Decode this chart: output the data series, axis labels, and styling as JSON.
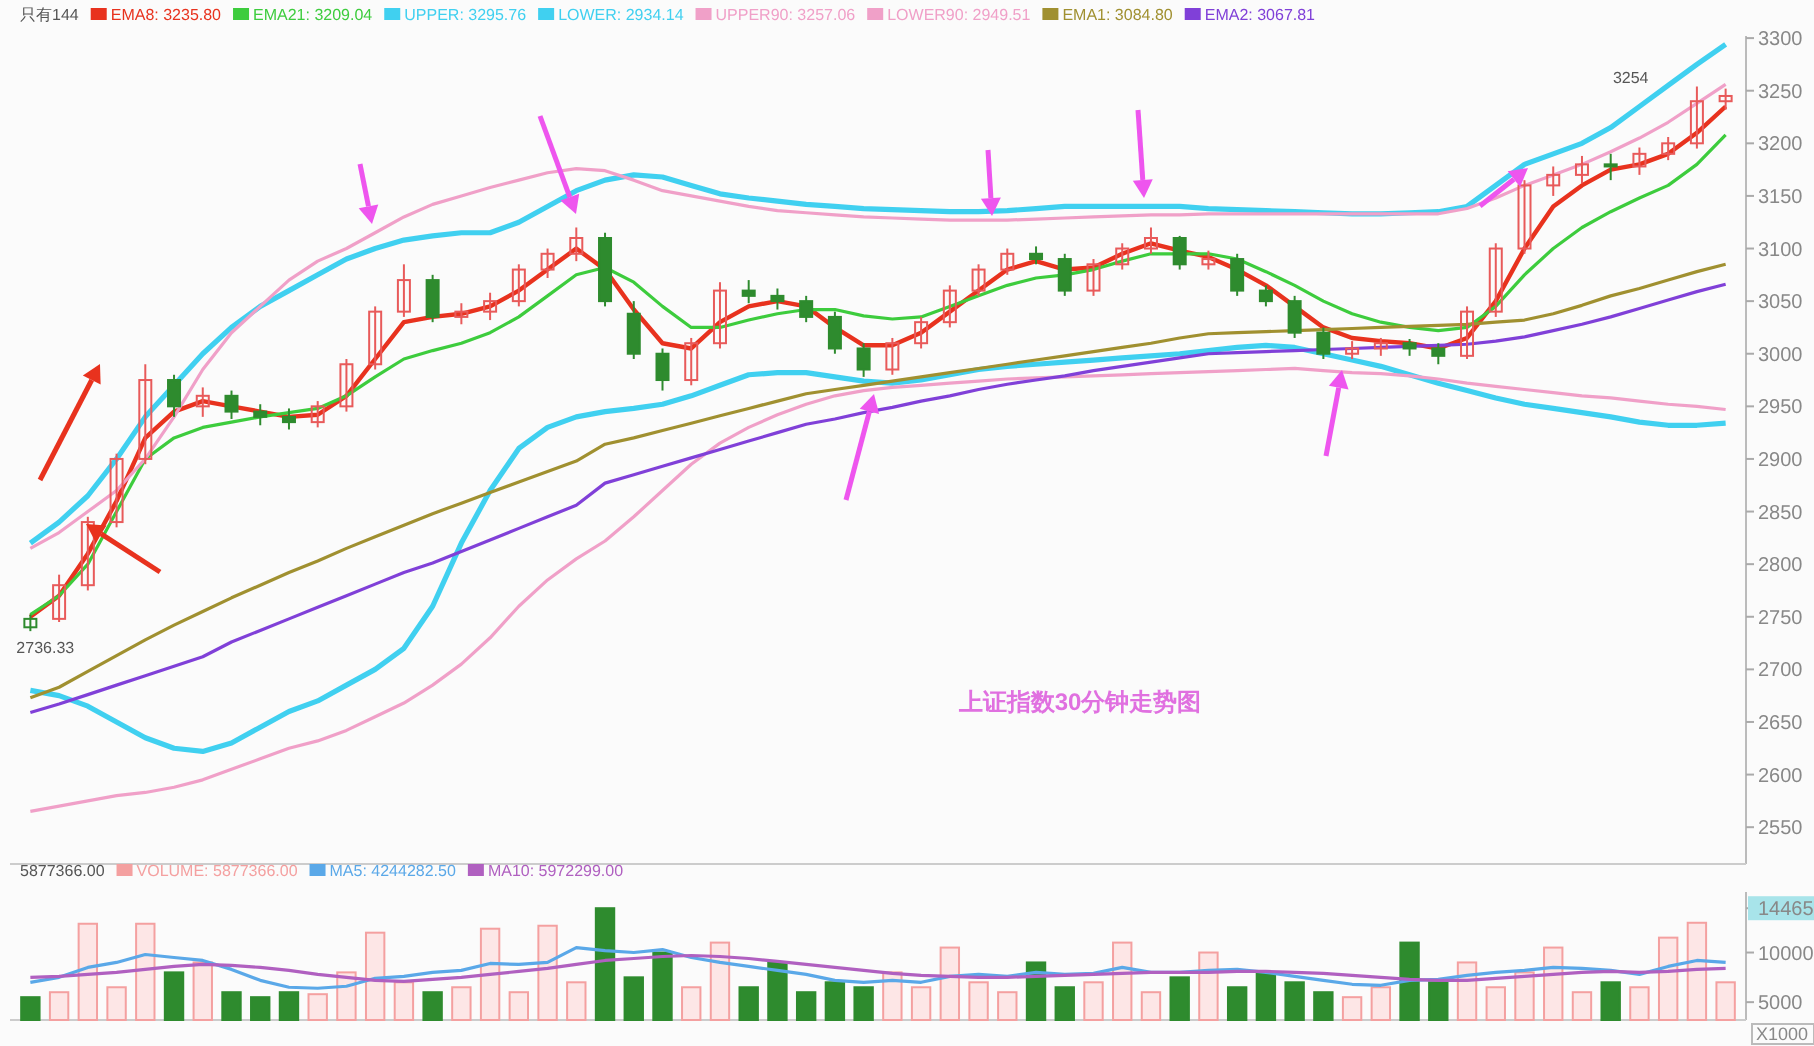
{
  "chart_data": [
    {
      "type": "candlestick",
      "title": "只有144",
      "categories": [
        null,
        null,
        null,
        null,
        null,
        null,
        null,
        null,
        null,
        null,
        null,
        null,
        null,
        null,
        null,
        null,
        null,
        null,
        null,
        null,
        null,
        null,
        null,
        null,
        null,
        null,
        null,
        null,
        null,
        null,
        null,
        null,
        null,
        null,
        null,
        null,
        null,
        null,
        null,
        null,
        null,
        null,
        null,
        null,
        null,
        null,
        null,
        null,
        null,
        null,
        null,
        null,
        null,
        null,
        null,
        null,
        null,
        null,
        null,
        null
      ],
      "ohlc": [
        [
          2740,
          2752,
          2736.33,
          2748
        ],
        [
          2748,
          2790,
          2745,
          2780
        ],
        [
          2780,
          2845,
          2775,
          2840
        ],
        [
          2840,
          2905,
          2835,
          2900
        ],
        [
          2900,
          2990,
          2895,
          2975
        ],
        [
          2975,
          2980,
          2940,
          2950
        ],
        [
          2950,
          2968,
          2940,
          2960
        ],
        [
          2960,
          2965,
          2938,
          2945
        ],
        [
          2945,
          2952,
          2932,
          2940
        ],
        [
          2940,
          2948,
          2928,
          2935
        ],
        [
          2935,
          2955,
          2930,
          2950
        ],
        [
          2950,
          2995,
          2945,
          2990
        ],
        [
          2990,
          3045,
          2985,
          3040
        ],
        [
          3040,
          3085,
          3035,
          3070
        ],
        [
          3070,
          3075,
          3030,
          3035
        ],
        [
          3035,
          3048,
          3028,
          3040
        ],
        [
          3040,
          3058,
          3032,
          3050
        ],
        [
          3050,
          3085,
          3045,
          3080
        ],
        [
          3080,
          3100,
          3072,
          3095
        ],
        [
          3095,
          3120,
          3088,
          3110
        ],
        [
          3110,
          3115,
          3045,
          3050
        ],
        [
          3038,
          3050,
          2995,
          3000
        ],
        [
          3000,
          3005,
          2965,
          2975
        ],
        [
          2975,
          3015,
          2970,
          3010
        ],
        [
          3010,
          3068,
          3005,
          3060
        ],
        [
          3060,
          3070,
          3048,
          3055
        ],
        [
          3055,
          3062,
          3042,
          3050
        ],
        [
          3050,
          3055,
          3030,
          3035
        ],
        [
          3035,
          3040,
          3000,
          3005
        ],
        [
          3005,
          3010,
          2978,
          2985
        ],
        [
          2985,
          3015,
          2980,
          3010
        ],
        [
          3010,
          3035,
          3005,
          3030
        ],
        [
          3030,
          3065,
          3025,
          3060
        ],
        [
          3060,
          3085,
          3055,
          3080
        ],
        [
          3080,
          3100,
          3075,
          3095
        ],
        [
          3095,
          3102,
          3085,
          3090
        ],
        [
          3090,
          3095,
          3055,
          3060
        ],
        [
          3060,
          3090,
          3055,
          3085
        ],
        [
          3085,
          3105,
          3080,
          3100
        ],
        [
          3100,
          3120,
          3095,
          3110
        ],
        [
          3110,
          3112,
          3080,
          3085
        ],
        [
          3085,
          3098,
          3080,
          3090
        ],
        [
          3090,
          3095,
          3055,
          3060
        ],
        [
          3060,
          3065,
          3045,
          3050
        ],
        [
          3050,
          3055,
          3015,
          3020
        ],
        [
          3020,
          3025,
          2995,
          3000
        ],
        [
          3000,
          3012,
          2995,
          3005
        ],
        [
          3005,
          3015,
          2998,
          3010
        ],
        [
          3010,
          3014,
          2998,
          3005
        ],
        [
          3005,
          3010,
          2990,
          2998
        ],
        [
          2998,
          3045,
          2995,
          3040
        ],
        [
          3040,
          3105,
          3035,
          3100
        ],
        [
          3100,
          3165,
          3095,
          3160
        ],
        [
          3160,
          3178,
          3150,
          3170
        ],
        [
          3170,
          3188,
          3162,
          3180
        ],
        [
          3180,
          3190,
          3165,
          3178
        ],
        [
          3178,
          3196,
          3170,
          3190
        ],
        [
          3190,
          3206,
          3184,
          3200
        ],
        [
          3200,
          3254,
          3195,
          3240
        ],
        [
          3240,
          3252,
          3232,
          3245
        ]
      ],
      "colors": [
        "#2e8b2e",
        "#e85a5a",
        "#e85a5a",
        "#e85a5a",
        "#e85a5a",
        "#2e8b2e",
        "#e85a5a",
        "#2e8b2e",
        "#2e8b2e",
        "#2e8b2e",
        "#e85a5a",
        "#e85a5a",
        "#e85a5a",
        "#e85a5a",
        "#2e8b2e",
        "#e85a5a",
        "#e85a5a",
        "#e85a5a",
        "#e85a5a",
        "#e85a5a",
        "#2e8b2e",
        "#2e8b2e",
        "#2e8b2e",
        "#e85a5a",
        "#e85a5a",
        "#2e8b2e",
        "#2e8b2e",
        "#2e8b2e",
        "#2e8b2e",
        "#2e8b2e",
        "#e85a5a",
        "#e85a5a",
        "#e85a5a",
        "#e85a5a",
        "#e85a5a",
        "#2e8b2e",
        "#2e8b2e",
        "#e85a5a",
        "#e85a5a",
        "#e85a5a",
        "#2e8b2e",
        "#e85a5a",
        "#2e8b2e",
        "#2e8b2e",
        "#2e8b2e",
        "#2e8b2e",
        "#e85a5a",
        "#e85a5a",
        "#2e8b2e",
        "#2e8b2e",
        "#e85a5a",
        "#e85a5a",
        "#e85a5a",
        "#e85a5a",
        "#e85a5a",
        "#2e8b2e",
        "#e85a5a",
        "#e85a5a",
        "#e85a5a",
        "#e85a5a"
      ],
      "series": [
        {
          "name": "EMA8: 3235.80",
          "type": "line",
          "color": "#e8321e",
          "values": [
            2750,
            2770,
            2810,
            2860,
            2920,
            2945,
            2955,
            2950,
            2945,
            2940,
            2942,
            2960,
            2995,
            3030,
            3035,
            3038,
            3045,
            3060,
            3080,
            3100,
            3080,
            3042,
            3010,
            3005,
            3030,
            3045,
            3050,
            3045,
            3025,
            3008,
            3008,
            3020,
            3040,
            3060,
            3080,
            3088,
            3080,
            3082,
            3095,
            3105,
            3098,
            3092,
            3080,
            3065,
            3045,
            3025,
            3015,
            3012,
            3010,
            3005,
            3015,
            3050,
            3100,
            3140,
            3160,
            3175,
            3180,
            3190,
            3210,
            3235
          ]
        },
        {
          "name": "EMA21: 3209.04",
          "type": "line",
          "color": "#3dcc3d",
          "values": [
            2752,
            2770,
            2800,
            2850,
            2900,
            2920,
            2930,
            2935,
            2940,
            2944,
            2948,
            2960,
            2978,
            2995,
            3003,
            3010,
            3020,
            3035,
            3055,
            3075,
            3082,
            3068,
            3045,
            3025,
            3025,
            3032,
            3038,
            3042,
            3042,
            3036,
            3033,
            3035,
            3045,
            3055,
            3065,
            3072,
            3075,
            3080,
            3088,
            3095,
            3095,
            3095,
            3090,
            3078,
            3065,
            3050,
            3038,
            3030,
            3025,
            3022,
            3025,
            3045,
            3075,
            3100,
            3120,
            3135,
            3148,
            3160,
            3180,
            3208
          ]
        },
        {
          "name": "UPPER: 3295.76",
          "type": "line",
          "color": "#40d0f0",
          "values": [
            2820,
            2840,
            2865,
            2900,
            2940,
            2970,
            3000,
            3025,
            3045,
            3060,
            3075,
            3090,
            3100,
            3108,
            3112,
            3115,
            3115,
            3125,
            3140,
            3155,
            3165,
            3170,
            3168,
            3160,
            3152,
            3148,
            3145,
            3142,
            3140,
            3138,
            3137,
            3136,
            3135,
            3135,
            3136,
            3138,
            3140,
            3140,
            3140,
            3140,
            3140,
            3138,
            3137,
            3136,
            3135,
            3134,
            3133,
            3133,
            3134,
            3135,
            3140,
            3160,
            3180,
            3190,
            3200,
            3215,
            3235,
            3255,
            3275,
            3294
          ]
        },
        {
          "name": "LOWER: 2934.14",
          "type": "line",
          "color": "#40d0f0",
          "values": [
            2680,
            2675,
            2665,
            2650,
            2635,
            2625,
            2622,
            2630,
            2645,
            2660,
            2670,
            2685,
            2700,
            2720,
            2760,
            2820,
            2870,
            2910,
            2930,
            2940,
            2945,
            2948,
            2952,
            2960,
            2970,
            2980,
            2982,
            2982,
            2978,
            2974,
            2972,
            2975,
            2980,
            2985,
            2988,
            2990,
            2992,
            2994,
            2996,
            2998,
            3000,
            3003,
            3006,
            3008,
            3006,
            3000,
            2994,
            2988,
            2980,
            2972,
            2965,
            2958,
            2952,
            2948,
            2944,
            2940,
            2935,
            2932,
            2932,
            2934
          ]
        },
        {
          "name": "UPPER90: 3257.06",
          "type": "line",
          "color": "#f0a0c8",
          "values": [
            2815,
            2830,
            2850,
            2870,
            2900,
            2940,
            2985,
            3020,
            3045,
            3070,
            3088,
            3100,
            3115,
            3130,
            3142,
            3150,
            3158,
            3165,
            3172,
            3176,
            3174,
            3165,
            3155,
            3150,
            3145,
            3140,
            3136,
            3134,
            3132,
            3130,
            3129,
            3128,
            3127,
            3127,
            3127,
            3128,
            3129,
            3130,
            3131,
            3132,
            3132,
            3133,
            3133,
            3133,
            3133,
            3133,
            3133,
            3133,
            3133,
            3133,
            3138,
            3148,
            3160,
            3170,
            3180,
            3192,
            3205,
            3220,
            3238,
            3256
          ]
        },
        {
          "name": "LOWER90: 2949.51",
          "type": "line",
          "color": "#f0a0c8",
          "values": [
            2565,
            2570,
            2575,
            2580,
            2583,
            2588,
            2595,
            2605,
            2615,
            2625,
            2632,
            2642,
            2655,
            2668,
            2685,
            2705,
            2730,
            2760,
            2785,
            2805,
            2822,
            2845,
            2870,
            2895,
            2915,
            2930,
            2942,
            2952,
            2960,
            2965,
            2968,
            2970,
            2972,
            2974,
            2976,
            2977,
            2978,
            2979,
            2980,
            2981,
            2982,
            2983,
            2984,
            2985,
            2986,
            2984,
            2982,
            2981,
            2979,
            2976,
            2972,
            2969,
            2966,
            2963,
            2960,
            2958,
            2955,
            2952,
            2950,
            2947
          ]
        },
        {
          "name": "EMA1: 3084.80",
          "type": "line",
          "color": "#a09030",
          "values": [
            2673,
            2683,
            2698,
            2713,
            2728,
            2742,
            2755,
            2768,
            2780,
            2792,
            2803,
            2815,
            2826,
            2837,
            2848,
            2858,
            2868,
            2878,
            2888,
            2898,
            2914,
            2920,
            2927,
            2934,
            2941,
            2948,
            2955,
            2962,
            2966,
            2970,
            2974,
            2978,
            2982,
            2986,
            2990,
            2994,
            2998,
            3002,
            3006,
            3010,
            3015,
            3019,
            3020,
            3021,
            3022,
            3023,
            3024,
            3025,
            3026,
            3027,
            3028,
            3030,
            3032,
            3038,
            3046,
            3055,
            3062,
            3070,
            3078,
            3085
          ]
        },
        {
          "name": "EMA2: 3067.81",
          "type": "line",
          "color": "#8040d8",
          "values": [
            2659,
            2667,
            2676,
            2685,
            2694,
            2703,
            2712,
            2726,
            2737,
            2748,
            2759,
            2770,
            2781,
            2792,
            2801,
            2812,
            2823,
            2834,
            2845,
            2856,
            2877,
            2885,
            2893,
            2901,
            2909,
            2917,
            2925,
            2933,
            2938,
            2944,
            2949,
            2955,
            2960,
            2966,
            2971,
            2975,
            2979,
            2984,
            2988,
            2992,
            2996,
            3000,
            3001,
            3002,
            3003,
            3004,
            3005,
            3006,
            3007,
            3008,
            3009,
            3012,
            3016,
            3022,
            3028,
            3035,
            3043,
            3051,
            3059,
            3066
          ]
        }
      ],
      "ylim": [
        2515,
        3302
      ],
      "yticks": [
        2550,
        2600,
        2650,
        2700,
        2750,
        2800,
        2850,
        2900,
        2950,
        3000,
        3050,
        3100,
        3150,
        3200,
        3250,
        3300
      ],
      "tick_labels": "y",
      "legend": "top left",
      "annotations": [
        {
          "text": "2736.33",
          "y": 2736.33
        },
        "3254",
        "上证指数30分钟走势图"
      ]
    },
    {
      "type": "bar",
      "categories": [
        null,
        null,
        null,
        null,
        null,
        null,
        null,
        null,
        null,
        null,
        null,
        null,
        null,
        null,
        null,
        null,
        null,
        null,
        null,
        null,
        null,
        null,
        null,
        null,
        null,
        null,
        null,
        null,
        null,
        null,
        null,
        null,
        null,
        null,
        null,
        null,
        null,
        null,
        null,
        null,
        null,
        null,
        null,
        null,
        null,
        null,
        null,
        null,
        null,
        null,
        null,
        null,
        null,
        null,
        null,
        null,
        null,
        null,
        null,
        null
      ],
      "series": [
        {
          "name": "VOLUME: 5877366.00",
          "type": "bar",
          "values": [
            5500,
            6000,
            12900,
            6500,
            12900,
            8000,
            9000,
            6000,
            5500,
            6000,
            5800,
            8000,
            12000,
            7000,
            6000,
            6500,
            12400,
            6000,
            12700,
            7000,
            14465,
            7500,
            10000,
            6500,
            11000,
            6500,
            9000,
            6000,
            7000,
            6500,
            8000,
            6500,
            10500,
            7000,
            6000,
            9000,
            6500,
            7000,
            11000,
            6000,
            7500,
            10000,
            6500,
            8000,
            7000,
            6000,
            5500,
            6500,
            11000,
            7000,
            9000,
            6500,
            8000,
            10500,
            6000,
            7000,
            6500,
            11500,
            13000,
            7000
          ],
          "colors": [
            "#2e8b2e",
            "#f4a0a0",
            "#f4a0a0",
            "#f4a0a0",
            "#f4a0a0",
            "#2e8b2e",
            "#f4a0a0",
            "#2e8b2e",
            "#2e8b2e",
            "#2e8b2e",
            "#f4a0a0",
            "#f4a0a0",
            "#f4a0a0",
            "#f4a0a0",
            "#2e8b2e",
            "#f4a0a0",
            "#f4a0a0",
            "#f4a0a0",
            "#f4a0a0",
            "#f4a0a0",
            "#2e8b2e",
            "#2e8b2e",
            "#2e8b2e",
            "#f4a0a0",
            "#f4a0a0",
            "#2e8b2e",
            "#2e8b2e",
            "#2e8b2e",
            "#2e8b2e",
            "#2e8b2e",
            "#f4a0a0",
            "#f4a0a0",
            "#f4a0a0",
            "#f4a0a0",
            "#f4a0a0",
            "#2e8b2e",
            "#2e8b2e",
            "#f4a0a0",
            "#f4a0a0",
            "#f4a0a0",
            "#2e8b2e",
            "#f4a0a0",
            "#2e8b2e",
            "#2e8b2e",
            "#2e8b2e",
            "#2e8b2e",
            "#f4a0a0",
            "#f4a0a0",
            "#2e8b2e",
            "#2e8b2e",
            "#f4a0a0",
            "#f4a0a0",
            "#f4a0a0",
            "#f4a0a0",
            "#f4a0a0",
            "#2e8b2e",
            "#f4a0a0",
            "#f4a0a0",
            "#f4a0a0",
            "#f4a0a0"
          ]
        },
        {
          "name": "MA5: 4244282.50",
          "type": "line",
          "color": "#5aa8e8",
          "values": [
            7000,
            7500,
            8500,
            9000,
            9800,
            9500,
            9200,
            8300,
            7200,
            6500,
            6400,
            6600,
            7400,
            7600,
            8000,
            8200,
            8900,
            8800,
            9000,
            10500,
            10200,
            10000,
            10300,
            9500,
            9000,
            8600,
            8200,
            7800,
            7200,
            7000,
            7200,
            7000,
            7600,
            7800,
            7600,
            8000,
            7800,
            7900,
            8500,
            8000,
            8000,
            8200,
            8300,
            8000,
            7600,
            7200,
            6800,
            6700,
            7200,
            7300,
            7700,
            8000,
            8200,
            8500,
            8400,
            8200,
            7800,
            8600,
            9200,
            9000
          ]
        },
        {
          "name": "MA10: 5972299.00",
          "type": "line",
          "color": "#b060c0",
          "values": [
            7500,
            7600,
            7800,
            8000,
            8300,
            8600,
            8800,
            8700,
            8500,
            8200,
            7800,
            7500,
            7200,
            7100,
            7300,
            7500,
            7800,
            8100,
            8400,
            8800,
            9200,
            9400,
            9600,
            9700,
            9600,
            9400,
            9100,
            8800,
            8500,
            8200,
            7900,
            7700,
            7600,
            7500,
            7500,
            7600,
            7700,
            7800,
            7900,
            8000,
            8000,
            8000,
            8100,
            8100,
            8000,
            7900,
            7700,
            7500,
            7300,
            7200,
            7200,
            7400,
            7600,
            7800,
            8000,
            8100,
            8000,
            8100,
            8300,
            8400
          ]
        }
      ],
      "ylim": [
        3200,
        16100
      ],
      "yticks": [
        5000,
        10000,
        {
          "value": 14465,
          "label": "14465"
        }
      ],
      "tick_labels": "y",
      "legend": "top left",
      "annotations": [
        "5877366.00",
        "X1000"
      ]
    }
  ]
}
